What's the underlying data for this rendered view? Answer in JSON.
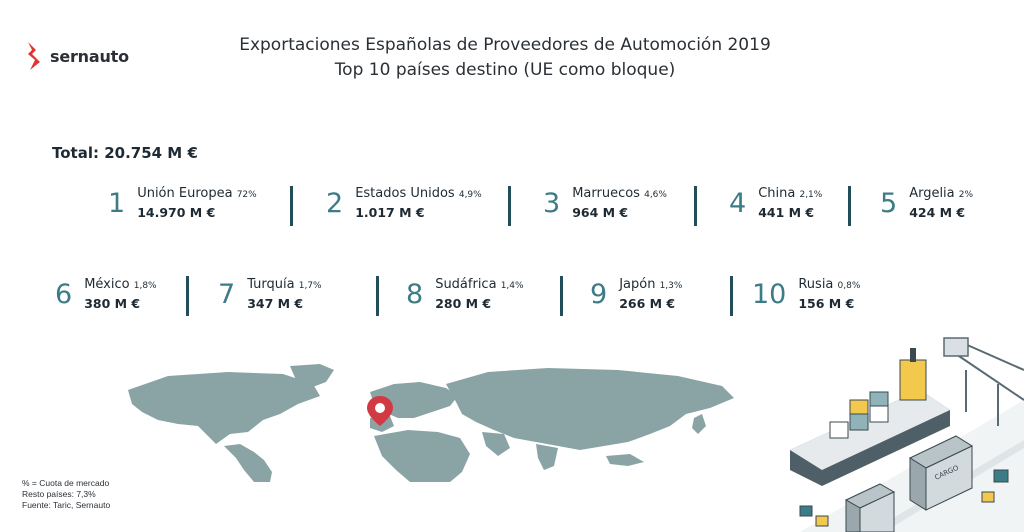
{
  "brand": {
    "name": "sernauto",
    "color": "#e3342f"
  },
  "header": {
    "title": "Exportaciones Españolas de Proveedores de Automoción 2019",
    "subtitle": "Top 10 países destino (UE como bloque)"
  },
  "total": "Total: 20.754 M €",
  "countries": [
    {
      "rank": "1",
      "name": "Unión Europea",
      "share": "72%",
      "value": "14.970 M €"
    },
    {
      "rank": "2",
      "name": "Estados Unidos",
      "share": "4,9%",
      "value": "1.017 M €"
    },
    {
      "rank": "3",
      "name": "Marruecos",
      "share": "4,6%",
      "value": "964 M €"
    },
    {
      "rank": "4",
      "name": "China",
      "share": "2,1%",
      "value": "441 M €"
    },
    {
      "rank": "5",
      "name": "Argelia",
      "share": "2%",
      "value": "424 M €"
    },
    {
      "rank": "6",
      "name": "México",
      "share": "1,8%",
      "value": "380 M €"
    },
    {
      "rank": "7",
      "name": "Turquía",
      "share": "1,7%",
      "value": "347 M €"
    },
    {
      "rank": "8",
      "name": "Sudáfrica",
      "share": "1,4%",
      "value": "280 M €"
    },
    {
      "rank": "9",
      "name": "Japón",
      "share": "1,3%",
      "value": "266 M €"
    },
    {
      "rank": "10",
      "name": "Rusia",
      "share": "0,8%",
      "value": "156 M €"
    }
  ],
  "notes": [
    "% = Cuota de mercado",
    "Resto países: 7,3%",
    "Fuente: Taric, Sernauto"
  ],
  "illustration": {
    "container_label": "CARGO",
    "map_pin_color": "#d13a42",
    "map_color": "#8aa4a6",
    "accent": "#3c7c86"
  }
}
